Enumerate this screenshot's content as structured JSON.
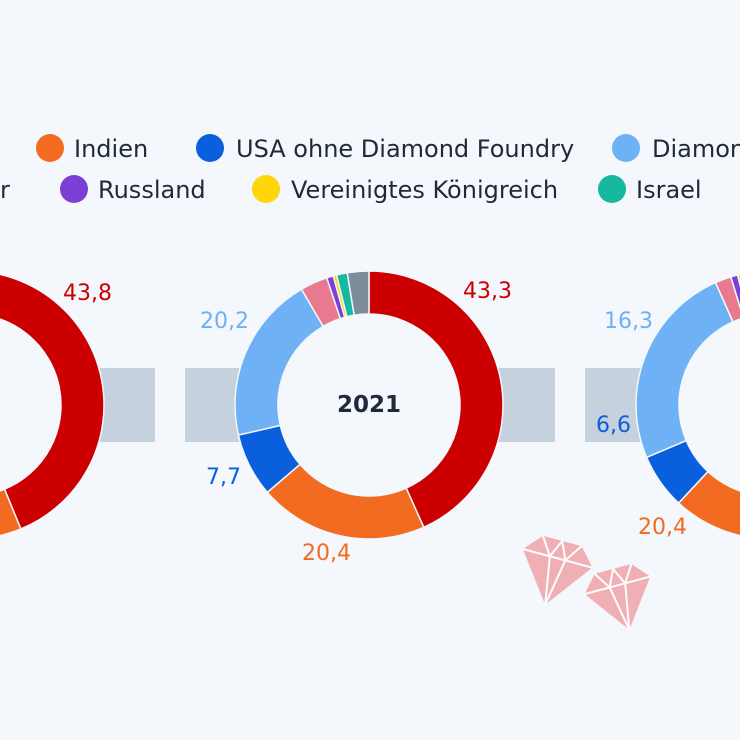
{
  "legend": {
    "items": [
      {
        "label": "r",
        "color": "#cc0000"
      },
      {
        "label": "Indien",
        "color": "#f26b21"
      },
      {
        "label": "USA ohne Diamond Foundry",
        "color": "#0a5fdd"
      },
      {
        "label": "Diamon",
        "color": "#6fb1f5"
      },
      {
        "label": "Russland",
        "color": "#7b3fd6"
      },
      {
        "label": "Vereinigtes Königreich",
        "color": "#ffd60a"
      },
      {
        "label": "Israel",
        "color": "#16b8a0"
      }
    ]
  },
  "chart_data": [
    {
      "type": "pie",
      "center_label": "",
      "slices": [
        {
          "value": 43.8,
          "label": "43,8",
          "color": "#cc0000"
        },
        {
          "value": null,
          "label": "",
          "color": "#f26b21"
        }
      ]
    },
    {
      "type": "pie",
      "center_label": "2021",
      "slices": [
        {
          "value": 43.3,
          "label": "43,3",
          "color": "#cc0000"
        },
        {
          "value": 20.4,
          "label": "20,4",
          "color": "#f26b21"
        },
        {
          "value": 7.7,
          "label": "7,7",
          "color": "#0a5fdd"
        },
        {
          "value": 20.2,
          "label": "20,2",
          "color": "#6fb1f5"
        },
        {
          "value": 3.3,
          "label": "",
          "color": "#e8798f"
        },
        {
          "value": 0.8,
          "label": "",
          "color": "#7b3fd6"
        },
        {
          "value": 0.4,
          "label": "",
          "color": "#ffd60a"
        },
        {
          "value": 1.3,
          "label": "",
          "color": "#16b8a0"
        },
        {
          "value": 2.6,
          "label": "",
          "color": "#7a8d99"
        }
      ]
    },
    {
      "type": "pie",
      "center_label": "",
      "slices": [
        {
          "value": 20.4,
          "label": "20,4",
          "color": "#f26b21"
        },
        {
          "value": 6.6,
          "label": "6,6",
          "color": "#0a5fdd"
        },
        {
          "value": 16.3,
          "label": "16,3",
          "color": "#6fb1f5"
        }
      ]
    }
  ],
  "colors": {
    "connector": "#c5d1dc",
    "diamond": "#f0a8ad",
    "background": "#f4f7fb"
  }
}
